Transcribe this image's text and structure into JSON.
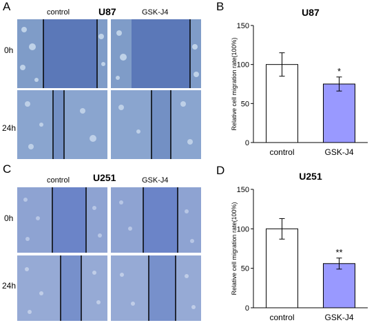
{
  "panels": {
    "A": {
      "letter": "A",
      "title": "U87",
      "col1": "control",
      "col2": "GSK-J4",
      "row1": "0h",
      "row2": "24h"
    },
    "B": {
      "letter": "B",
      "title": "U87"
    },
    "C": {
      "letter": "C",
      "title": "U251",
      "col1": "control",
      "col2": "GSK-J4",
      "row1": "0h",
      "row2": "24h"
    },
    "D": {
      "letter": "D",
      "title": "U251"
    }
  },
  "colors": {
    "control_bar": "#ffffff",
    "gsk_bar": "#9999ff",
    "u87_tissue": "#7f9cc8",
    "u87_gap": "#5b78b8",
    "u251_tissue": "#8ea3d2",
    "u251_gap": "#6b84c8"
  },
  "chart_data": [
    {
      "type": "bar",
      "title": "U87",
      "categories": [
        "control",
        "GSK-J4"
      ],
      "values": [
        100,
        75
      ],
      "errors": [
        15,
        9
      ],
      "significance": [
        "",
        "*"
      ],
      "ylabel": "Relative cell migration rate(100%)",
      "ylim": [
        0,
        150
      ],
      "yticks": [
        "0",
        "50",
        "100",
        "150"
      ],
      "grid": false
    },
    {
      "type": "bar",
      "title": "U251",
      "categories": [
        "control",
        "GSK-J4"
      ],
      "values": [
        100,
        56
      ],
      "errors": [
        13,
        7
      ],
      "significance": [
        "",
        "**"
      ],
      "ylabel": "Relative cell migration rate(100%)",
      "ylim": [
        0,
        150
      ],
      "yticks": [
        "0",
        "50",
        "100",
        "150"
      ],
      "grid": false
    }
  ]
}
